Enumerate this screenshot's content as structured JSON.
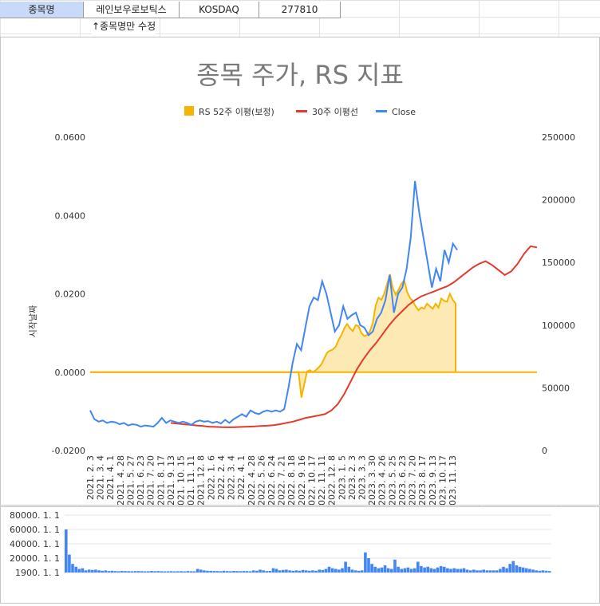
{
  "sheet": {
    "cells": [
      "종목명",
      "레인보우로보틱스",
      "KOSDAQ",
      "277810"
    ],
    "note": "↑종목명만 수정"
  },
  "main_chart": {
    "title": "종목 주가, RS 지표",
    "legend": [
      "RS 52주 이평(보정)",
      "30주 이평선",
      "Close"
    ],
    "left_axis_label": "시작날짜",
    "left_ticks": [
      "0.0600",
      "0.0400",
      "0.0200",
      "0.0000",
      "-0.0200"
    ],
    "right_ticks": [
      "250000",
      "200000",
      "150000",
      "100000",
      "50000",
      "0"
    ],
    "x_ticks": [
      "2021. 2. 3",
      "2021. 3. 4",
      "2021. 4. 1",
      "2021. 4. 28",
      "2021. 5. 27",
      "2021. 6. 23",
      "2021. 7. 20",
      "2021. 8. 17",
      "2021. 9. 13",
      "2021. 10. 15",
      "2021. 11. 11",
      "2021. 12. 8",
      "2022. 1. 6",
      "2022. 2. 4",
      "2022. 3. 4",
      "2022. 4. 1",
      "2022. 4. 28",
      "2022. 5. 26",
      "2022. 6. 24",
      "2022. 7. 21",
      "2022. 8. 18",
      "2022. 9. 16",
      "2022. 10. 17",
      "2022. 11. 11",
      "2022. 12. 8",
      "2023. 1. 5",
      "2023. 2. 3",
      "2023. 3. 3",
      "2023. 3. 30",
      "2023. 4. 26",
      "2023. 5. 25",
      "2023. 6. 23",
      "2023. 7. 20",
      "2023. 8. 17",
      "2023. 9. 13",
      "2023. 10. 17",
      "2023. 11. 13"
    ],
    "colors": {
      "rs": "#f4b400",
      "rs_fill": "#fde9b3",
      "ma30": "#e23b2e",
      "close": "#4285f4",
      "zero": "#f4b400"
    }
  },
  "volume_chart": {
    "ticks": [
      "80000. 1. 1",
      "60000. 1. 1",
      "40000. 1. 1",
      "20000. 1. 1",
      "1900. 1. 1"
    ],
    "color": "#4285f4"
  },
  "chart_data": [
    {
      "type": "line",
      "x_start": "2021. 2. 3",
      "x_end": "2023. 11. 27",
      "y_left_range": [
        -0.02,
        0.06
      ],
      "y_right_range": [
        0,
        250000
      ],
      "series": [
        {
          "name": "RS 52주 이평(보정)",
          "axis": "left",
          "values": [
            0,
            0,
            0,
            0,
            0,
            0,
            0,
            0,
            0,
            0,
            0,
            0,
            0,
            0,
            0,
            0,
            0,
            0,
            0,
            0,
            0,
            0,
            0,
            0,
            0,
            0,
            0,
            0,
            0,
            0,
            0,
            0,
            0,
            0,
            0,
            0,
            0,
            0,
            0,
            0,
            0,
            0,
            0,
            0,
            0,
            0,
            0,
            0,
            0,
            0,
            0,
            0,
            0,
            0,
            0,
            0,
            0,
            0,
            0,
            0,
            0,
            0,
            0,
            0,
            0,
            0,
            0,
            0,
            0,
            0,
            0,
            0,
            0,
            0,
            -0.0065,
            -0.003,
            0.0002,
            0.0005,
            0,
            0.0005,
            0.0012,
            0.002,
            0.0035,
            0.005,
            0.0055,
            0.0058,
            0.0065,
            0.0082,
            0.0095,
            0.0112,
            0.0123,
            0.0112,
            0.0105,
            0.012,
            0.0118,
            0.01,
            0.0092,
            0.0095,
            0.0105,
            0.0125,
            0.017,
            0.019,
            0.0185,
            0.02,
            0.0225,
            0.025,
            0.0215,
            0.0198,
            0.021,
            0.0225,
            0.0235,
            0.0205,
            0.019,
            0.0182,
            0.0168,
            0.0158,
            0.0165,
            0.0162,
            0.0175,
            0.0168,
            0.0162,
            0.0175,
            0.0165,
            0.0188,
            0.0182,
            0.018,
            0.02,
            0.0185,
            0.0175
          ]
        },
        {
          "name": "30주 이평선",
          "axis": "right",
          "values": [
            22000,
            21500,
            21000,
            20500,
            20000,
            19500,
            19000,
            18800,
            18600,
            18500,
            18600,
            18800,
            19000,
            19200,
            19500,
            19800,
            20200,
            21000,
            22000,
            23000,
            24500,
            26000,
            27000,
            28000,
            29000,
            32000,
            37000,
            45000,
            55000,
            65000,
            73000,
            80000,
            86000,
            93000,
            100000,
            106000,
            111000,
            116000,
            120000,
            123000,
            125000,
            127000,
            129000,
            131000,
            134000,
            138000,
            142000,
            146000,
            149000,
            151000,
            148000,
            144000,
            140000,
            143000,
            149000,
            157000,
            163000,
            162000
          ]
        },
        {
          "name": "Close",
          "axis": "right",
          "values": [
            32000,
            25000,
            23000,
            24000,
            22000,
            23000,
            22500,
            21000,
            22000,
            20000,
            21000,
            20500,
            19000,
            20000,
            19500,
            19000,
            22000,
            26000,
            22000,
            24000,
            23000,
            22000,
            23000,
            22000,
            20500,
            23000,
            24000,
            23000,
            23500,
            22000,
            23000,
            21500,
            24500,
            22000,
            25000,
            27000,
            29000,
            27000,
            32000,
            30000,
            29000,
            31000,
            32000,
            31000,
            32000,
            31000,
            33000,
            50000,
            70000,
            85000,
            80000,
            98000,
            115000,
            122000,
            120000,
            135000,
            125000,
            110000,
            95000,
            100000,
            115000,
            105000,
            108000,
            110000,
            100000,
            98000,
            92000,
            95000,
            105000,
            110000,
            120000,
            140000,
            110000,
            125000,
            130000,
            145000,
            170000,
            215000,
            190000,
            170000,
            150000,
            130000,
            145000,
            135000,
            160000,
            150000,
            165000,
            160000
          ]
        }
      ]
    },
    {
      "type": "bar",
      "name": "volume",
      "ylim": [
        0,
        80000
      ],
      "values": [
        60000,
        25000,
        12000,
        8000,
        5000,
        6000,
        3000,
        4000,
        3500,
        4000,
        3000,
        2500,
        3000,
        2000,
        2500,
        2000,
        1800,
        2200,
        2000,
        1900,
        1800,
        2000,
        2000,
        1900,
        1700,
        1800,
        2200,
        1800,
        2000,
        1800,
        1600,
        1700,
        1900,
        1600,
        1800,
        1900,
        1600,
        2000,
        1800,
        1700,
        5000,
        4000,
        3000,
        2500,
        2300,
        2100,
        2000,
        1800,
        2500,
        2000,
        1800,
        2200,
        2000,
        1900,
        2100,
        2000,
        1800,
        3000,
        2500,
        4000,
        3000,
        2000,
        2200,
        6000,
        5000,
        3000,
        3500,
        4000,
        3000,
        2500,
        3000,
        2500,
        3500,
        3000,
        2500,
        3000,
        2500,
        4000,
        3500,
        5000,
        8000,
        6000,
        5000,
        4000,
        6000,
        15000,
        8000,
        4000,
        3000,
        2500,
        3000,
        28000,
        20000,
        12000,
        8000,
        6000,
        7000,
        10000,
        6000,
        5000,
        18000,
        8000,
        5000,
        6000,
        7000,
        5000,
        6000,
        15000,
        9000,
        7000,
        8000,
        6000,
        5000,
        7000,
        9000,
        8000,
        6000,
        5000,
        6000,
        5000,
        5000,
        6000,
        4000,
        3000,
        4000,
        3000,
        3000,
        4000,
        3000,
        3000,
        3000,
        3000,
        5000,
        8000,
        6000,
        12000,
        16000,
        10000,
        8000,
        7000,
        6000,
        5000,
        4000,
        3000,
        2500,
        3000,
        2500,
        2000
      ]
    }
  ]
}
